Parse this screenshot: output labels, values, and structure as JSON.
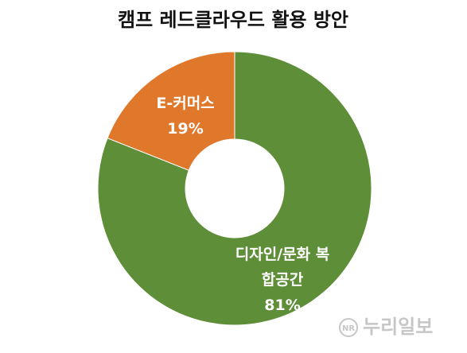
{
  "chart_data": {
    "type": "donut",
    "title": "캠프 레드클라우드 활용 방안",
    "categories": [
      "디자인/문화 복합공간",
      "E-커머스"
    ],
    "values": [
      81,
      19
    ],
    "value_labels": [
      "81%",
      "19%"
    ],
    "colors": [
      "#5e8e38",
      "#e0782c"
    ]
  },
  "watermark": {
    "logo": "NR",
    "text": "누리일보"
  }
}
